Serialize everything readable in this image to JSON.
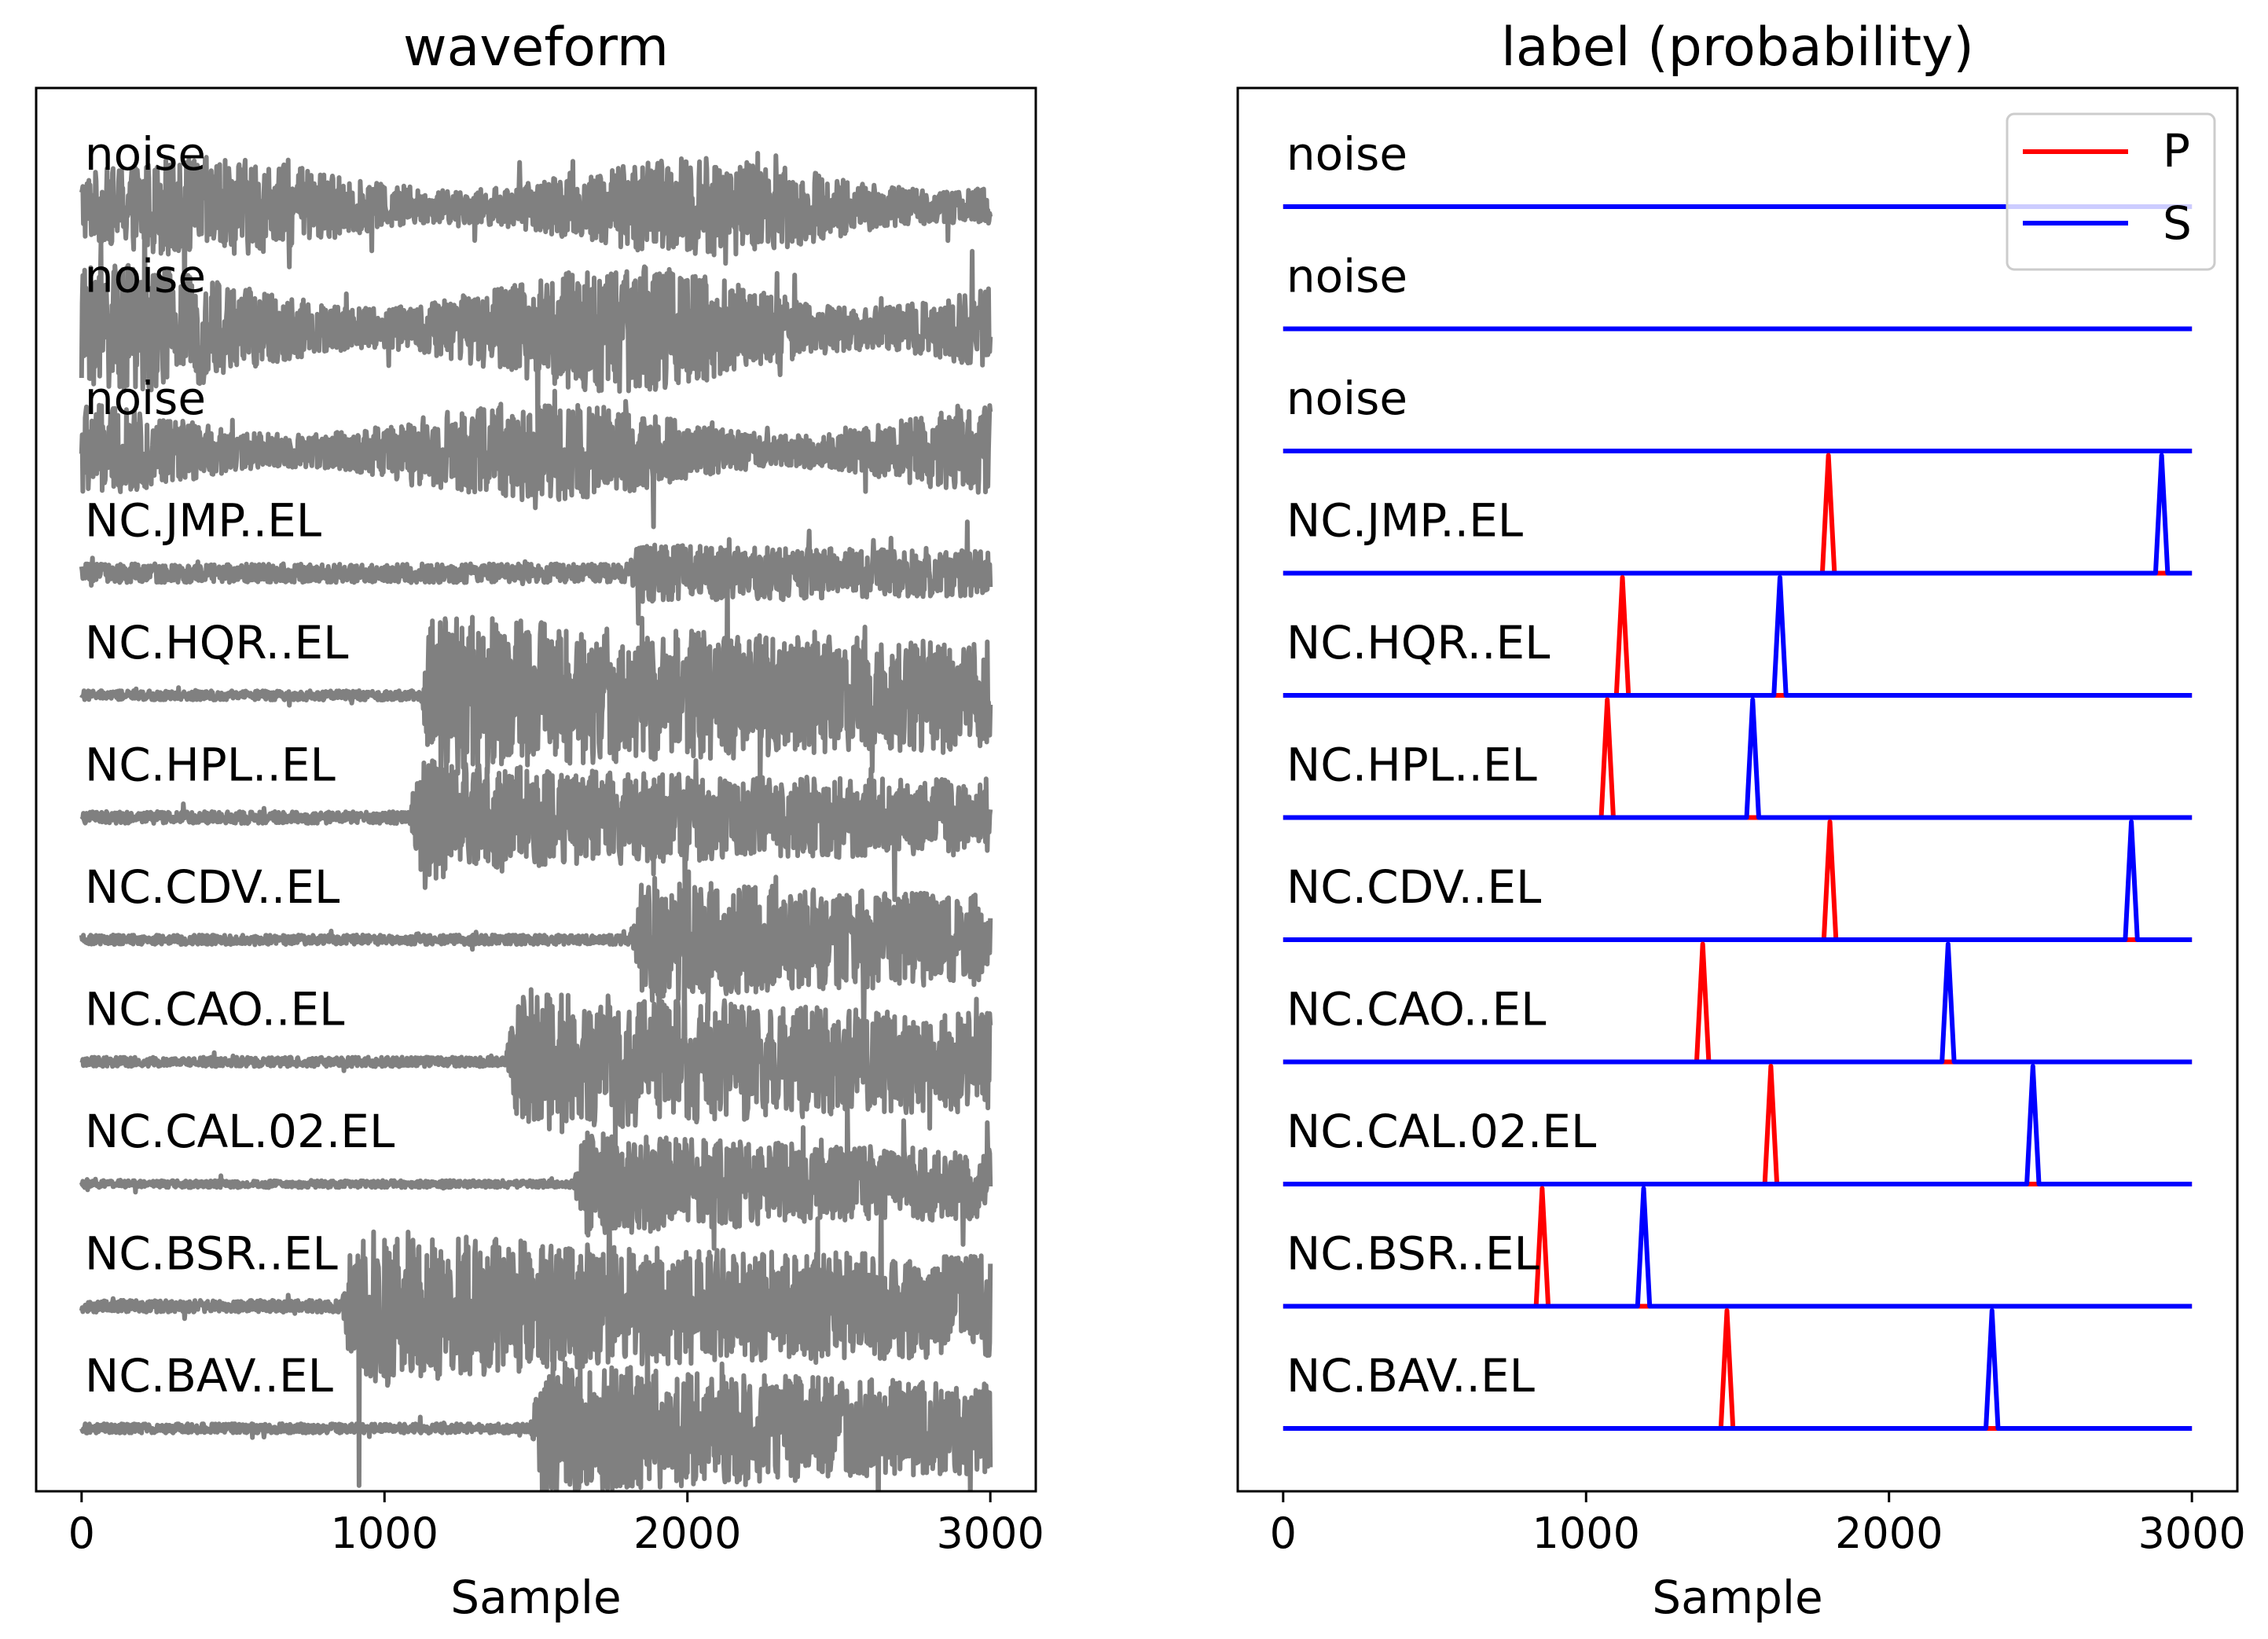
{
  "chart_data": [
    {
      "type": "line",
      "title": "waveform",
      "xlabel": "Sample",
      "ylabel": "",
      "xlim": [
        -150,
        3150
      ],
      "xticks": [
        0,
        1000,
        2000,
        3000
      ],
      "n_samples": 3000,
      "color": "#808080",
      "trace_labels": [
        "noise",
        "noise",
        "noise",
        "NC.JMP..EL",
        "NC.HQR..EL",
        "NC.HPL..EL",
        "NC.CDV..EL",
        "NC.CAO..EL",
        "NC.CAL.02.EL",
        "NC.BSR..EL",
        "NC.BAV..EL"
      ],
      "traces": [
        {
          "label": "noise",
          "onset": null,
          "pre_amp": 0.35,
          "post_amp": 0.35
        },
        {
          "label": "noise",
          "onset": null,
          "pre_amp": 0.45,
          "post_amp": 0.45
        },
        {
          "label": "noise",
          "onset": null,
          "pre_amp": 0.35,
          "post_amp": 0.35
        },
        {
          "label": "NC.JMP..EL",
          "onset": 1800,
          "pre_amp": 0.08,
          "post_amp": 0.25
        },
        {
          "label": "NC.HQR..EL",
          "onset": 1120,
          "pre_amp": 0.04,
          "post_amp": 0.75
        },
        {
          "label": "NC.HPL..EL",
          "onset": 1080,
          "pre_amp": 0.05,
          "post_amp": 0.5
        },
        {
          "label": "NC.CDV..EL",
          "onset": 1810,
          "pre_amp": 0.04,
          "post_amp": 0.55
        },
        {
          "label": "NC.CAO..EL",
          "onset": 1400,
          "pre_amp": 0.04,
          "post_amp": 0.65
        },
        {
          "label": "NC.CAL.02.EL",
          "onset": 1620,
          "pre_amp": 0.03,
          "post_amp": 0.45
        },
        {
          "label": "NC.BSR..EL",
          "onset": 860,
          "pre_amp": 0.05,
          "post_amp": 0.7
        },
        {
          "label": "NC.BAV..EL",
          "onset": 1480,
          "pre_amp": 0.04,
          "post_amp": 0.6
        }
      ]
    },
    {
      "type": "line",
      "title": "label (probability)",
      "xlabel": "Sample",
      "ylabel": "",
      "xlim": [
        -150,
        3150
      ],
      "xticks": [
        0,
        1000,
        2000,
        3000
      ],
      "legend": {
        "location": "top-right",
        "entries": [
          {
            "name": "P",
            "color": "#ff0000"
          },
          {
            "name": "S",
            "color": "#0000ff"
          }
        ]
      },
      "trace_labels": [
        "noise",
        "noise",
        "noise",
        "NC.JMP..EL",
        "NC.HQR..EL",
        "NC.HPL..EL",
        "NC.CDV..EL",
        "NC.CAO..EL",
        "NC.CAL.02.EL",
        "NC.BSR..EL",
        "NC.BAV..EL"
      ],
      "picks": [
        {
          "label": "noise",
          "P": null,
          "S": null
        },
        {
          "label": "noise",
          "P": null,
          "S": null
        },
        {
          "label": "noise",
          "P": null,
          "S": null
        },
        {
          "label": "NC.JMP..EL",
          "P": 1800,
          "S": 2900
        },
        {
          "label": "NC.HQR..EL",
          "P": 1120,
          "S": 1640
        },
        {
          "label": "NC.HPL..EL",
          "P": 1070,
          "S": 1550
        },
        {
          "label": "NC.CDV..EL",
          "P": 1805,
          "S": 2800
        },
        {
          "label": "NC.CAO..EL",
          "P": 1385,
          "S": 2195
        },
        {
          "label": "NC.CAL.02.EL",
          "P": 1610,
          "S": 2475
        },
        {
          "label": "NC.BSR..EL",
          "P": 855,
          "S": 1190
        },
        {
          "label": "NC.BAV..EL",
          "P": 1465,
          "S": 2340
        }
      ]
    }
  ]
}
